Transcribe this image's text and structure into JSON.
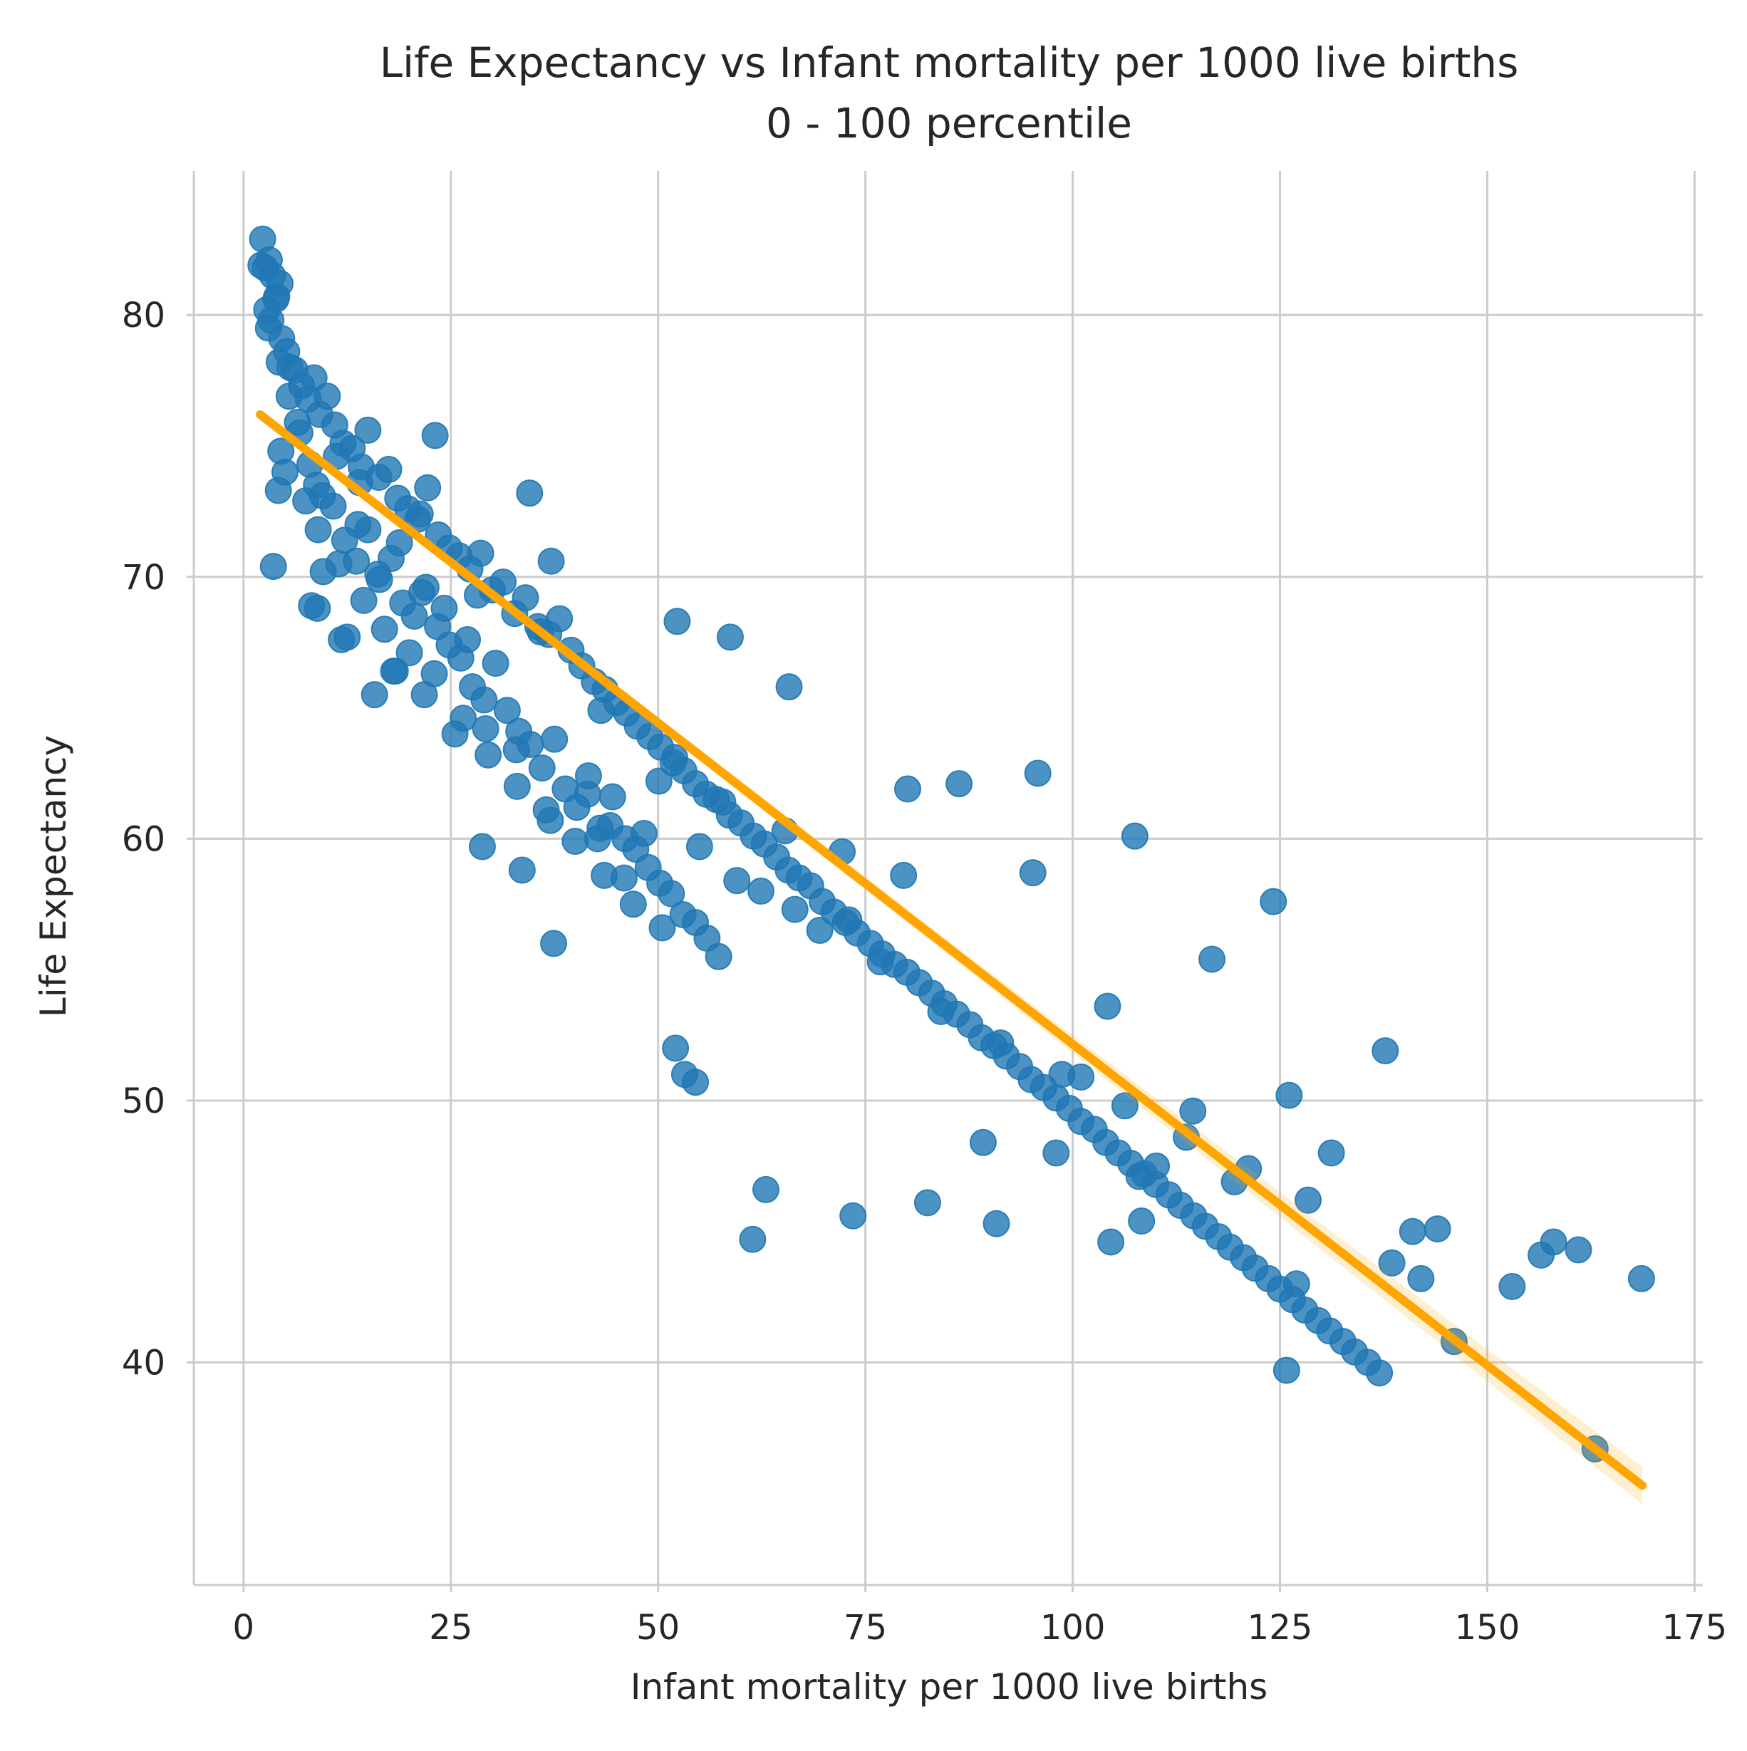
{
  "chart_data": {
    "type": "scatter",
    "title": "Life Expectancy vs Infant mortality per 1000 live births",
    "subtitle": "0 - 100 percentile",
    "xlabel": "Infant mortality per 1000 live births",
    "ylabel": "Life Expectancy",
    "xlim": [
      -6,
      176
    ],
    "ylim": [
      31.5,
      85.5
    ],
    "xticks": [
      0,
      25,
      50,
      75,
      100,
      125,
      150,
      175
    ],
    "yticks": [
      40,
      50,
      60,
      70,
      80
    ],
    "xtick_labels": [
      "0",
      "25",
      "50",
      "75",
      "100",
      "125",
      "150",
      "175"
    ],
    "ytick_labels": [
      "40",
      "50",
      "60",
      "70",
      "80"
    ],
    "grid": true,
    "point_color": "#1f77b4",
    "point_opacity": 0.8,
    "fit_color": "#ffa500",
    "fit_line": {
      "x": [
        2,
        168.7
      ],
      "y": [
        76.2,
        35.3
      ]
    },
    "points": {
      "x": [
        2.3,
        2.6,
        3.1,
        3.5,
        4.0,
        4.4,
        2.1,
        2.8,
        3.3,
        3.9,
        4.6,
        5.2,
        5.6,
        6.2,
        7.0,
        7.8,
        8.5,
        9.2,
        10.1,
        11.0,
        12.0,
        13.1,
        14.2,
        15.0,
        16.3,
        17.5,
        18.6,
        19.8,
        21.0,
        22.2,
        23.5,
        24.8,
        26.0,
        27.3,
        28.6,
        30.0,
        31.3,
        32.7,
        34.0,
        35.5,
        36.8,
        38.1,
        39.5,
        40.8,
        42.3,
        43.6,
        45.0,
        46.2,
        47.5,
        49.0,
        50.3,
        51.8,
        53.1,
        54.5,
        55.8,
        57.0,
        58.6,
        60.0,
        61.5,
        62.8,
        64.3,
        65.7,
        67.0,
        68.4,
        69.8,
        71.2,
        72.6,
        74.0,
        75.6,
        77.0,
        78.5,
        80.0,
        81.5,
        83.0,
        84.5,
        86.0,
        87.6,
        89.0,
        90.5,
        92.0,
        93.6,
        95.0,
        96.5,
        98.0,
        99.6,
        101.0,
        102.6,
        104.0,
        105.5,
        107.0,
        108.6,
        110.0,
        111.6,
        113.0,
        114.6,
        116.0,
        117.6,
        119.0,
        120.6,
        122.0,
        123.6,
        125.0,
        126.5,
        128.0,
        129.6,
        131.0,
        132.6,
        134.0,
        135.6,
        137.0,
        138.5,
        141.0,
        142.0,
        144.0,
        146.0,
        153.0,
        156.5,
        158.0,
        163.0,
        168.6,
        3.0,
        4.3,
        5.5,
        6.8,
        8.0,
        9.5,
        10.8,
        12.2,
        13.6,
        15.0,
        16.4,
        17.8,
        19.2,
        20.6,
        22.0,
        23.4,
        24.8,
        26.2,
        27.6,
        29.0,
        30.4,
        31.8,
        33.2,
        34.6,
        36.0,
        37.5,
        38.8,
        40.2,
        41.6,
        43.0,
        44.5,
        46.0,
        47.3,
        48.8,
        50.2,
        51.6,
        53.0,
        54.5,
        55.9,
        57.3,
        5.0,
        7.5,
        9.0,
        11.5,
        14.5,
        17.0,
        20.0,
        23.0,
        26.5,
        29.5,
        33.0,
        36.5,
        40.0,
        43.5,
        47.0,
        50.5,
        4.2,
        6.5,
        8.8,
        11.2,
        13.8,
        16.2,
        18.8,
        21.5,
        24.2,
        27.0,
        3.6,
        12.5,
        21.8,
        29.2,
        37.0,
        44.2,
        52.0,
        59.5,
        66.5,
        73.0,
        14.0,
        21.3,
        28.2,
        35.8,
        43.1,
        50.1,
        57.8,
        65.3,
        72.2,
        79.6,
        8.9,
        18.1,
        25.5,
        32.9,
        41.5,
        48.3,
        55.0,
        62.4,
        69.5,
        76.8,
        84.1,
        91.3,
        98.7,
        106.3,
        113.7,
        121.2,
        128.4,
        104.2,
        116.8,
        126.1,
        137.7,
        124.2,
        95.8,
        107.5,
        86.3,
        95.2,
        80.1,
        65.8,
        52.3,
        37.1,
        58.7,
        34.5,
        23.1,
        4.5,
        8.2,
        9.6,
        11.8,
        15.8,
        18.3,
        28.8,
        33.6,
        37.4,
        42.7,
        45.9,
        52.1,
        53.2,
        54.5,
        61.4,
        63.0,
        73.5,
        82.5,
        90.8,
        104.6,
        108.3,
        125.8,
        127.0,
        161.0,
        89.2,
        98.0,
        110.1,
        119.5,
        131.2,
        114.5,
        108.0,
        101.0
      ],
      "y": [
        82.9,
        81.8,
        82.1,
        81.5,
        80.7,
        81.2,
        81.9,
        80.2,
        79.8,
        80.6,
        79.1,
        78.6,
        78.0,
        77.9,
        77.3,
        76.8,
        77.6,
        76.2,
        76.9,
        75.8,
        75.1,
        74.9,
        74.2,
        75.6,
        73.8,
        74.1,
        73.0,
        72.6,
        72.2,
        73.4,
        71.6,
        71.1,
        70.8,
        70.3,
        70.9,
        69.5,
        69.8,
        68.6,
        69.2,
        68.1,
        67.8,
        68.4,
        67.2,
        66.6,
        66.0,
        65.7,
        65.2,
        64.8,
        64.3,
        63.9,
        63.5,
        62.9,
        62.6,
        62.1,
        61.7,
        61.5,
        60.9,
        60.6,
        60.1,
        59.8,
        59.3,
        58.8,
        58.5,
        58.2,
        57.6,
        57.2,
        56.8,
        56.4,
        56.0,
        55.6,
        55.2,
        54.9,
        54.5,
        54.1,
        53.7,
        53.3,
        52.9,
        52.4,
        52.1,
        51.7,
        51.3,
        50.8,
        50.5,
        50.1,
        49.7,
        49.2,
        48.9,
        48.4,
        48.0,
        47.6,
        47.2,
        46.8,
        46.4,
        46.0,
        45.6,
        45.2,
        44.8,
        44.4,
        44.0,
        43.6,
        43.2,
        42.8,
        42.4,
        42.0,
        41.6,
        41.2,
        40.8,
        40.4,
        40.0,
        39.6,
        43.8,
        45.0,
        43.2,
        45.1,
        40.8,
        42.9,
        44.1,
        44.6,
        36.7,
        43.2,
        79.5,
        78.2,
        76.9,
        75.5,
        74.3,
        73.1,
        72.7,
        71.4,
        70.6,
        71.8,
        69.9,
        70.7,
        69.0,
        68.5,
        69.6,
        68.1,
        67.4,
        66.9,
        65.8,
        65.3,
        66.7,
        64.9,
        64.1,
        63.6,
        62.7,
        63.8,
        61.9,
        61.2,
        62.4,
        60.4,
        61.6,
        60.0,
        59.6,
        58.9,
        58.3,
        57.9,
        57.1,
        56.8,
        56.2,
        55.5,
        74.0,
        72.9,
        71.8,
        70.5,
        69.1,
        68.0,
        67.1,
        66.3,
        64.6,
        63.2,
        62.0,
        61.1,
        59.9,
        58.6,
        57.5,
        56.6,
        73.3,
        75.9,
        73.5,
        74.6,
        72.0,
        70.1,
        71.3,
        69.4,
        68.8,
        67.6,
        70.4,
        67.7,
        65.5,
        64.2,
        60.7,
        60.5,
        63.1,
        58.4,
        57.3,
        56.9,
        73.6,
        72.4,
        69.3,
        67.9,
        64.9,
        62.2,
        61.4,
        60.3,
        59.5,
        58.6,
        68.8,
        66.4,
        64.0,
        63.4,
        61.7,
        60.2,
        59.7,
        58.0,
        56.5,
        55.3,
        53.4,
        52.2,
        51.0,
        49.8,
        48.6,
        47.4,
        46.2,
        53.6,
        55.4,
        50.2,
        51.9,
        57.6,
        62.5,
        60.1,
        62.1,
        58.7,
        61.9,
        65.8,
        68.3,
        70.6,
        67.7,
        73.2,
        75.4,
        74.8,
        68.9,
        70.2,
        67.6,
        65.5,
        66.4,
        59.7,
        58.8,
        56.0,
        60.0,
        58.5,
        52.0,
        51.0,
        50.7,
        44.7,
        46.6,
        45.6,
        46.1,
        45.3,
        44.6,
        45.4,
        39.7,
        43.0,
        44.3,
        48.4,
        48.0,
        47.5,
        46.9,
        48.0,
        49.6,
        47.1,
        50.9
      ]
    }
  }
}
